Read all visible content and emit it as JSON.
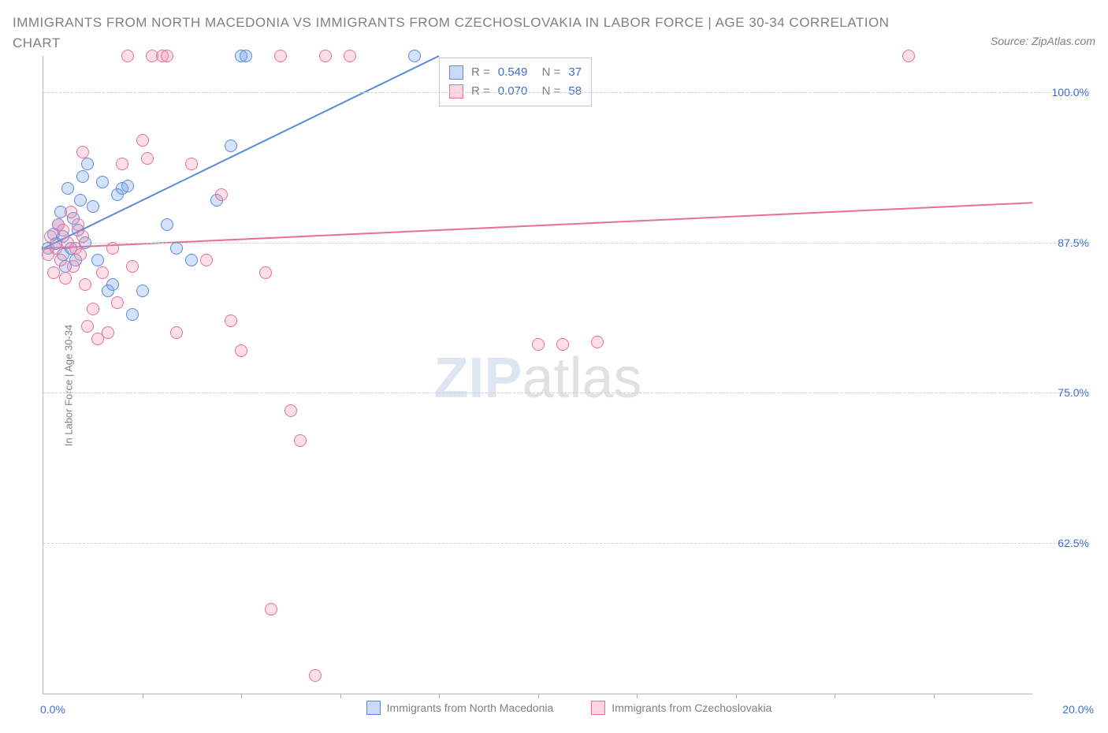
{
  "title": "IMMIGRANTS FROM NORTH MACEDONIA VS IMMIGRANTS FROM CZECHOSLOVAKIA IN LABOR FORCE | AGE 30-34 CORRELATION CHART",
  "source_label": "Source: ZipAtlas.com",
  "ylabel": "In Labor Force | Age 30-34",
  "watermark": {
    "left": "ZIP",
    "right": "atlas"
  },
  "chart": {
    "type": "scatter",
    "xlim": [
      0.0,
      20.0
    ],
    "ylim": [
      50.0,
      103.0
    ],
    "x_axis": {
      "min_label": "0.0%",
      "max_label": "20.0%",
      "tick_positions_pct": [
        10,
        20,
        30,
        40,
        50,
        60,
        70,
        80,
        90
      ]
    },
    "y_gridlines": [
      {
        "value": 100.0,
        "label": "100.0%"
      },
      {
        "value": 87.5,
        "label": "87.5%"
      },
      {
        "value": 75.0,
        "label": "75.0%"
      },
      {
        "value": 62.5,
        "label": "62.5%"
      }
    ],
    "background_color": "#ffffff",
    "grid_color": "#d0d0d0",
    "axis_color": "#b0b0b0",
    "marker_radius": 8,
    "marker_border_width": 1.2,
    "series": [
      {
        "name": "Immigrants from North Macedonia",
        "fill": "rgba(100,150,235,0.28)",
        "stroke": "#5a8ad8",
        "trend": {
          "x1": 0.0,
          "y1": 87.0,
          "x2": 8.0,
          "y2": 103.0,
          "width": 2
        },
        "R": "0.549",
        "N": "37",
        "points": [
          [
            0.1,
            87.0
          ],
          [
            0.2,
            88.2
          ],
          [
            0.25,
            87.4
          ],
          [
            0.3,
            89.0
          ],
          [
            0.35,
            90.0
          ],
          [
            0.4,
            86.5
          ],
          [
            0.4,
            88.0
          ],
          [
            0.45,
            85.5
          ],
          [
            0.5,
            92.0
          ],
          [
            0.55,
            87.0
          ],
          [
            0.6,
            89.5
          ],
          [
            0.65,
            86.0
          ],
          [
            0.7,
            88.5
          ],
          [
            0.75,
            91.0
          ],
          [
            0.8,
            93.0
          ],
          [
            0.85,
            87.5
          ],
          [
            0.9,
            94.0
          ],
          [
            1.0,
            90.5
          ],
          [
            1.1,
            86.0
          ],
          [
            1.2,
            92.5
          ],
          [
            1.3,
            83.5
          ],
          [
            1.4,
            84.0
          ],
          [
            1.5,
            91.5
          ],
          [
            1.6,
            92.0
          ],
          [
            1.7,
            92.2
          ],
          [
            1.8,
            81.5
          ],
          [
            2.0,
            83.5
          ],
          [
            2.5,
            89.0
          ],
          [
            2.7,
            87.0
          ],
          [
            3.0,
            86.0
          ],
          [
            3.5,
            91.0
          ],
          [
            3.8,
            95.5
          ],
          [
            4.0,
            103.0
          ],
          [
            4.1,
            103.0
          ],
          [
            7.5,
            103.0
          ]
        ]
      },
      {
        "name": "Immigrants from Czechoslovakia",
        "fill": "rgba(245,140,170,0.28)",
        "stroke": "#e66f9b",
        "trend": {
          "x1": 0.0,
          "y1": 87.0,
          "x2": 20.0,
          "y2": 90.8,
          "width": 2
        },
        "R": "0.070",
        "N": "58",
        "points": [
          [
            0.1,
            86.5
          ],
          [
            0.15,
            88.0
          ],
          [
            0.2,
            85.0
          ],
          [
            0.25,
            87.0
          ],
          [
            0.3,
            89.0
          ],
          [
            0.35,
            86.0
          ],
          [
            0.4,
            88.5
          ],
          [
            0.45,
            84.5
          ],
          [
            0.5,
            87.5
          ],
          [
            0.55,
            90.0
          ],
          [
            0.6,
            85.5
          ],
          [
            0.65,
            87.0
          ],
          [
            0.7,
            89.0
          ],
          [
            0.75,
            86.5
          ],
          [
            0.8,
            88.0
          ],
          [
            0.8,
            95.0
          ],
          [
            0.85,
            84.0
          ],
          [
            0.9,
            80.5
          ],
          [
            1.0,
            82.0
          ],
          [
            1.1,
            79.5
          ],
          [
            1.2,
            85.0
          ],
          [
            1.3,
            80.0
          ],
          [
            1.4,
            87.0
          ],
          [
            1.5,
            82.5
          ],
          [
            1.6,
            94.0
          ],
          [
            1.7,
            103.0
          ],
          [
            1.8,
            85.5
          ],
          [
            2.0,
            96.0
          ],
          [
            2.1,
            94.5
          ],
          [
            2.2,
            103.0
          ],
          [
            2.4,
            103.0
          ],
          [
            2.5,
            103.0
          ],
          [
            2.7,
            80.0
          ],
          [
            3.0,
            94.0
          ],
          [
            3.3,
            86.0
          ],
          [
            3.6,
            91.5
          ],
          [
            3.8,
            81.0
          ],
          [
            4.0,
            78.5
          ],
          [
            4.5,
            85.0
          ],
          [
            4.6,
            57.0
          ],
          [
            4.8,
            103.0
          ],
          [
            5.0,
            73.5
          ],
          [
            5.2,
            71.0
          ],
          [
            5.5,
            51.5
          ],
          [
            5.7,
            103.0
          ],
          [
            6.2,
            103.0
          ],
          [
            10.0,
            79.0
          ],
          [
            10.5,
            79.0
          ],
          [
            11.2,
            79.2
          ],
          [
            17.5,
            103.0
          ]
        ]
      }
    ]
  },
  "stats_box": {
    "rows": [
      {
        "swatch_fill": "rgba(100,150,235,0.35)",
        "swatch_stroke": "#5a8ad8",
        "R": "0.549",
        "N": "37"
      },
      {
        "swatch_fill": "rgba(245,140,170,0.35)",
        "swatch_stroke": "#e66f9b",
        "R": "0.070",
        "N": "58"
      }
    ]
  },
  "legend": [
    {
      "swatch_fill": "rgba(100,150,235,0.35)",
      "swatch_stroke": "#5a8ad8",
      "label": "Immigrants from North Macedonia"
    },
    {
      "swatch_fill": "rgba(245,140,170,0.35)",
      "swatch_stroke": "#e66f9b",
      "label": "Immigrants from Czechoslovakia"
    }
  ]
}
